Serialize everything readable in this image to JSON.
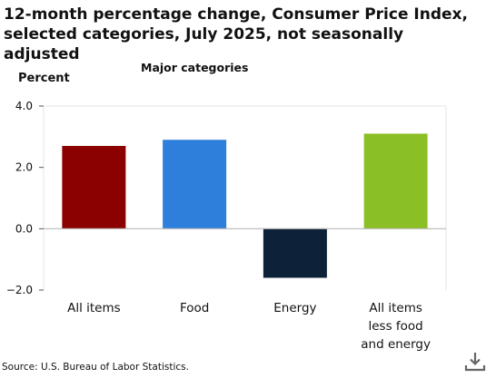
{
  "title": "12-month percentage change, Consumer Price Index, selected categories, July 2025, not seasonally adjusted",
  "source": "Source: U.S. Bureau of Labor Statistics.",
  "colors": {
    "all_items": "#8b0000",
    "food": "#2e7fdb",
    "energy": "#0d2238",
    "core": "#8bbf26",
    "axis": "#555555",
    "grid": "#e6e6e6"
  },
  "chart_data": {
    "type": "bar",
    "title": "12-month percentage change, Consumer Price Index, selected categories, July 2025, not seasonally adjusted",
    "subtitle": "Major categories",
    "ylabel": "Percent",
    "xlabel": "",
    "categories": [
      "All items",
      "Food",
      "Energy",
      "All items less food and energy"
    ],
    "category_lines": [
      [
        "All items"
      ],
      [
        "Food"
      ],
      [
        "Energy"
      ],
      [
        "All items",
        "less food",
        "and energy"
      ]
    ],
    "values": [
      2.7,
      2.9,
      -1.6,
      3.1
    ],
    "ylim": [
      -2.0,
      4.0
    ],
    "yticks": [
      "−2.0",
      "0.0",
      "2.0",
      "4.0"
    ],
    "ytick_values": [
      -2.0,
      0.0,
      2.0,
      4.0
    ],
    "grid": false,
    "legend": "none"
  }
}
